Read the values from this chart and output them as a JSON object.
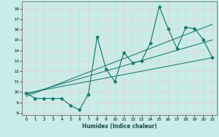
{
  "title": "",
  "xlabel": "Humidex (Indice chaleur)",
  "bg_color": "#c8ece8",
  "grid_color": "#e8d0d0",
  "line_color": "#1a7a6e",
  "spine_color": "#666666",
  "xlim": [
    -0.5,
    21.5
  ],
  "ylim": [
    7.8,
    18.7
  ],
  "xticks": [
    0,
    1,
    2,
    3,
    4,
    5,
    6,
    7,
    8,
    9,
    10,
    11,
    12,
    13,
    14,
    15,
    16,
    17,
    18,
    19,
    20,
    21
  ],
  "yticks": [
    8,
    9,
    10,
    11,
    12,
    13,
    14,
    15,
    16,
    17,
    18
  ],
  "main_x": [
    0,
    1,
    2,
    3,
    4,
    5,
    6,
    7,
    8,
    9,
    10,
    11,
    12,
    13,
    14,
    15,
    16,
    17,
    18,
    19,
    20,
    21
  ],
  "main_y": [
    9.9,
    9.4,
    9.4,
    9.4,
    9.4,
    8.7,
    8.3,
    9.8,
    15.3,
    12.2,
    11.0,
    13.8,
    12.8,
    13.0,
    14.7,
    18.2,
    16.1,
    14.2,
    16.2,
    16.1,
    15.0,
    13.3
  ],
  "line1_x": [
    0,
    21
  ],
  "line1_y": [
    9.9,
    13.3
  ],
  "line2_x": [
    0,
    21
  ],
  "line2_y": [
    9.8,
    15.0
  ],
  "line3_x": [
    0,
    21
  ],
  "line3_y": [
    9.6,
    16.5
  ]
}
